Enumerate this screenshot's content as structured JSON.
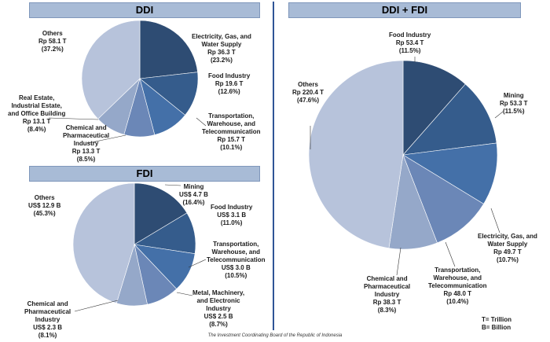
{
  "chart_data": [
    {
      "type": "pie",
      "title": "DDI",
      "slices": [
        {
          "label": "Electricity, Gas, and Water Supply",
          "amount": "Rp 36.3 T",
          "percent": "(23.2%)",
          "value": 23.2,
          "color": "#2e4c73"
        },
        {
          "label": "Food Industry",
          "amount": "Rp 19.6 T",
          "percent": "(12.6%)",
          "value": 12.6,
          "color": "#355c8c"
        },
        {
          "label": "Transportation, Warehouse, and Telecommunication",
          "amount": "Rp 15.7 T",
          "percent": "(10.1%)",
          "value": 10.1,
          "color": "#4470a8"
        },
        {
          "label": "Chemical and Pharmaceutical Industry",
          "amount": "Rp 13.3 T",
          "percent": "(8.5%)",
          "value": 8.5,
          "color": "#6b87b7"
        },
        {
          "label": "Real Estate, Industrial Estate, and Office Building",
          "amount": "Rp 13.1 T",
          "percent": "(8.4%)",
          "value": 8.4,
          "color": "#95a8c9"
        },
        {
          "label": "Others",
          "amount": "Rp 58.1 T",
          "percent": "(37.2%)",
          "value": 37.2,
          "color": "#b7c3db"
        }
      ]
    },
    {
      "type": "pie",
      "title": "FDI",
      "slices": [
        {
          "label": "Mining",
          "amount": "US$ 4.7 B",
          "percent": "(16.4%)",
          "value": 16.4,
          "color": "#2e4c73"
        },
        {
          "label": "Food Industry",
          "amount": "US$ 3.1 B",
          "percent": "(11.0%)",
          "value": 11.0,
          "color": "#355c8c"
        },
        {
          "label": "Transportation, Warehouse, and Telecommunication",
          "amount": "US$ 3.0 B",
          "percent": "(10.5%)",
          "value": 10.5,
          "color": "#4470a8"
        },
        {
          "label": "Metal, Machinery, and Electronic Industry",
          "amount": "US$ 2.5 B",
          "percent": "(8.7%)",
          "value": 8.7,
          "color": "#6b87b7"
        },
        {
          "label": "Chemical and Pharmaceutical Industry",
          "amount": "US$ 2.3 B",
          "percent": "(8.1%)",
          "value": 8.1,
          "color": "#95a8c9"
        },
        {
          "label": "Others",
          "amount": "US$ 12.9 B",
          "percent": "(45.3%)",
          "value": 45.3,
          "color": "#b7c3db"
        }
      ]
    },
    {
      "type": "pie",
      "title": "DDI + FDI",
      "slices": [
        {
          "label": "Food Industry",
          "amount": "Rp 53.4 T",
          "percent": "(11.5%)",
          "value": 11.5,
          "color": "#2e4c73"
        },
        {
          "label": "Mining",
          "amount": "Rp 53.3 T",
          "percent": "(11.5%)",
          "value": 11.5,
          "color": "#355c8c"
        },
        {
          "label": "Electricity, Gas, and Water Supply",
          "amount": "Rp 49.7 T",
          "percent": "(10.7%)",
          "value": 10.7,
          "color": "#4470a8"
        },
        {
          "label": "Transportation, Warehouse, and Telecommunication",
          "amount": "Rp 48.0 T",
          "percent": "(10.4%)",
          "value": 10.4,
          "color": "#6b87b7"
        },
        {
          "label": "Chemical and Pharmaceutical Industry",
          "amount": "Rp 38.3 T",
          "percent": "(8.3%)",
          "value": 8.3,
          "color": "#95a8c9"
        },
        {
          "label": "Others",
          "amount": "Rp 220.4 T",
          "percent": "(47.6%)",
          "value": 47.6,
          "color": "#b7c3db"
        }
      ]
    }
  ],
  "labels": {
    "ddi": [
      {
        "lines": [
          "Electricity, Gas, and",
          "Water Supply",
          "Rp 36.3 T",
          "(23.2%)"
        ]
      },
      {
        "lines": [
          "Food Industry",
          "Rp 19.6 T",
          "(12.6%)"
        ]
      },
      {
        "lines": [
          "Transportation,",
          "Warehouse, and",
          "Telecommunication",
          "Rp 15.7 T",
          "(10.1%)"
        ]
      },
      {
        "lines": [
          "Chemical and",
          "Pharmaceutical",
          "Industry",
          "Rp 13.3 T",
          "(8.5%)"
        ]
      },
      {
        "lines": [
          "Real Estate,",
          "Industrial Estate,",
          "and Office Building",
          "Rp 13.1 T",
          "(8.4%)"
        ]
      },
      {
        "lines": [
          "Others",
          "Rp 58.1 T",
          "(37.2%)"
        ]
      }
    ],
    "fdi": [
      {
        "lines": [
          "Mining",
          "US$ 4.7 B",
          "(16.4%)"
        ]
      },
      {
        "lines": [
          "Food Industry",
          "US$ 3.1 B",
          "(11.0%)"
        ]
      },
      {
        "lines": [
          "Transportation,",
          "Warehouse, and",
          "Telecommunication",
          "US$ 3.0 B",
          "(10.5%)"
        ]
      },
      {
        "lines": [
          "Metal, Machinery,",
          "and Electronic",
          "Industry",
          "US$ 2.5 B",
          "(8.7%)"
        ]
      },
      {
        "lines": [
          "Chemical and",
          "Pharmaceutical",
          "Industry",
          "US$ 2.3 B",
          "(8.1%)"
        ]
      },
      {
        "lines": [
          "Others",
          "US$ 12.9 B",
          "(45.3%)"
        ]
      }
    ],
    "combined": [
      {
        "lines": [
          "Food Industry",
          "Rp 53.4 T",
          "(11.5%)"
        ]
      },
      {
        "lines": [
          "Mining",
          "Rp 53.3 T",
          "(11.5%)"
        ]
      },
      {
        "lines": [
          "Electricity, Gas, and",
          "Water Supply",
          "Rp 49.7 T",
          "(10.7%)"
        ]
      },
      {
        "lines": [
          "Transportation,",
          "Warehouse, and",
          "Telecommunication",
          "Rp 48.0 T",
          "(10.4%)"
        ]
      },
      {
        "lines": [
          "Chemical and",
          "Pharmaceutical",
          "Industry",
          "Rp 38.3 T",
          "(8.3%)"
        ]
      },
      {
        "lines": [
          "Others",
          "Rp 220.4 T",
          "(47.6%)"
        ]
      }
    ]
  },
  "legend": {
    "trillion": "T= Trillion",
    "billion": "B= Billion"
  },
  "footer": "The Investment Coordinating Board of the Republic of Indonesia"
}
